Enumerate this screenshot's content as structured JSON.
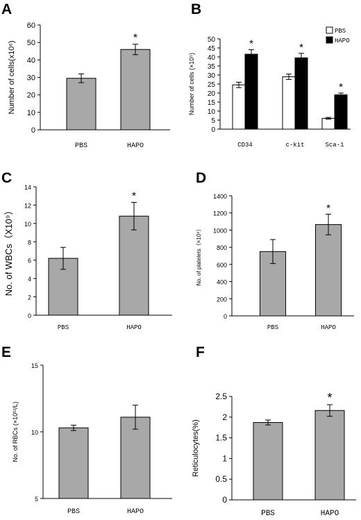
{
  "chart_data": [
    {
      "panel": "A",
      "type": "bar",
      "categories": [
        "PBS",
        "HAPO"
      ],
      "series": [
        {
          "values": [
            29.5,
            46
          ],
          "errors": [
            2.5,
            3
          ],
          "color": "#a8a8a8"
        }
      ],
      "significance": [
        "",
        "*"
      ],
      "ylabel": "Number of cells(x10⁶)",
      "ylim": [
        0,
        60
      ],
      "yticks": [
        "0",
        "10",
        "20",
        "30",
        "40",
        "50",
        "60"
      ]
    },
    {
      "panel": "B",
      "type": "bar",
      "categories": [
        "CD34",
        "c-kit",
        "Sca-1"
      ],
      "series": [
        {
          "name": "PBS",
          "values": [
            24.5,
            29,
            6
          ],
          "errors": [
            1.5,
            1.5,
            0.5
          ],
          "color": "#ffffff"
        },
        {
          "name": "HAPO",
          "values": [
            41.5,
            39.5,
            19
          ],
          "errors": [
            2.5,
            2.5,
            1
          ],
          "color": "#000000"
        }
      ],
      "significance": [
        "*",
        "*",
        "*"
      ],
      "ylabel": "Number of cells (×10⁵)",
      "ylim": [
        0,
        50
      ],
      "yticks": [
        "0",
        "5",
        "10",
        "15",
        "20",
        "25",
        "30",
        "35",
        "40",
        "45",
        "50"
      ],
      "legend": "top-right"
    },
    {
      "panel": "C",
      "type": "bar",
      "categories": [
        "PBS",
        "HAPO"
      ],
      "series": [
        {
          "values": [
            6.2,
            10.8
          ],
          "errors": [
            1.2,
            1.5
          ],
          "color": "#a8a8a8"
        }
      ],
      "significance": [
        "",
        "*"
      ],
      "ylabel": "No. of WBCs（X10⁹）",
      "ylim": [
        0,
        14
      ],
      "yticks": [
        "0",
        "2",
        "4",
        "6",
        "8",
        "10",
        "12",
        "14"
      ]
    },
    {
      "panel": "D",
      "type": "bar",
      "categories": [
        "PBS",
        "HAPO"
      ],
      "series": [
        {
          "values": [
            750,
            1065
          ],
          "errors": [
            140,
            120
          ],
          "color": "#a8a8a8"
        }
      ],
      "significance": [
        "",
        "*"
      ],
      "ylabel": "No. of platelets（×10⁹）",
      "ylim": [
        0,
        1400
      ],
      "yticks": [
        "0",
        "200",
        "400",
        "600",
        "800",
        "1000",
        "1200",
        "1400"
      ]
    },
    {
      "panel": "E",
      "type": "bar",
      "categories": [
        "PBS",
        "HAPO"
      ],
      "series": [
        {
          "values": [
            10.3,
            11.1
          ],
          "errors": [
            0.2,
            0.9
          ],
          "color": "#a8a8a8"
        }
      ],
      "significance": [
        "",
        ""
      ],
      "ylabel": "No. of RBCs (×10¹²/L)",
      "ylim": [
        5,
        15
      ],
      "yticks": [
        "5",
        "10",
        "15"
      ]
    },
    {
      "panel": "F",
      "type": "bar",
      "categories": [
        "PBS",
        "HAPO"
      ],
      "series": [
        {
          "values": [
            1.87,
            2.16
          ],
          "errors": [
            0.06,
            0.14
          ],
          "color": "#a8a8a8"
        }
      ],
      "significance": [
        "",
        "*"
      ],
      "ylabel": "Reticulocytes(%)",
      "ylim": [
        0,
        2.5
      ],
      "yticks": [
        "0",
        "0.5",
        "1",
        "1.5",
        "2",
        "2.5"
      ]
    }
  ]
}
